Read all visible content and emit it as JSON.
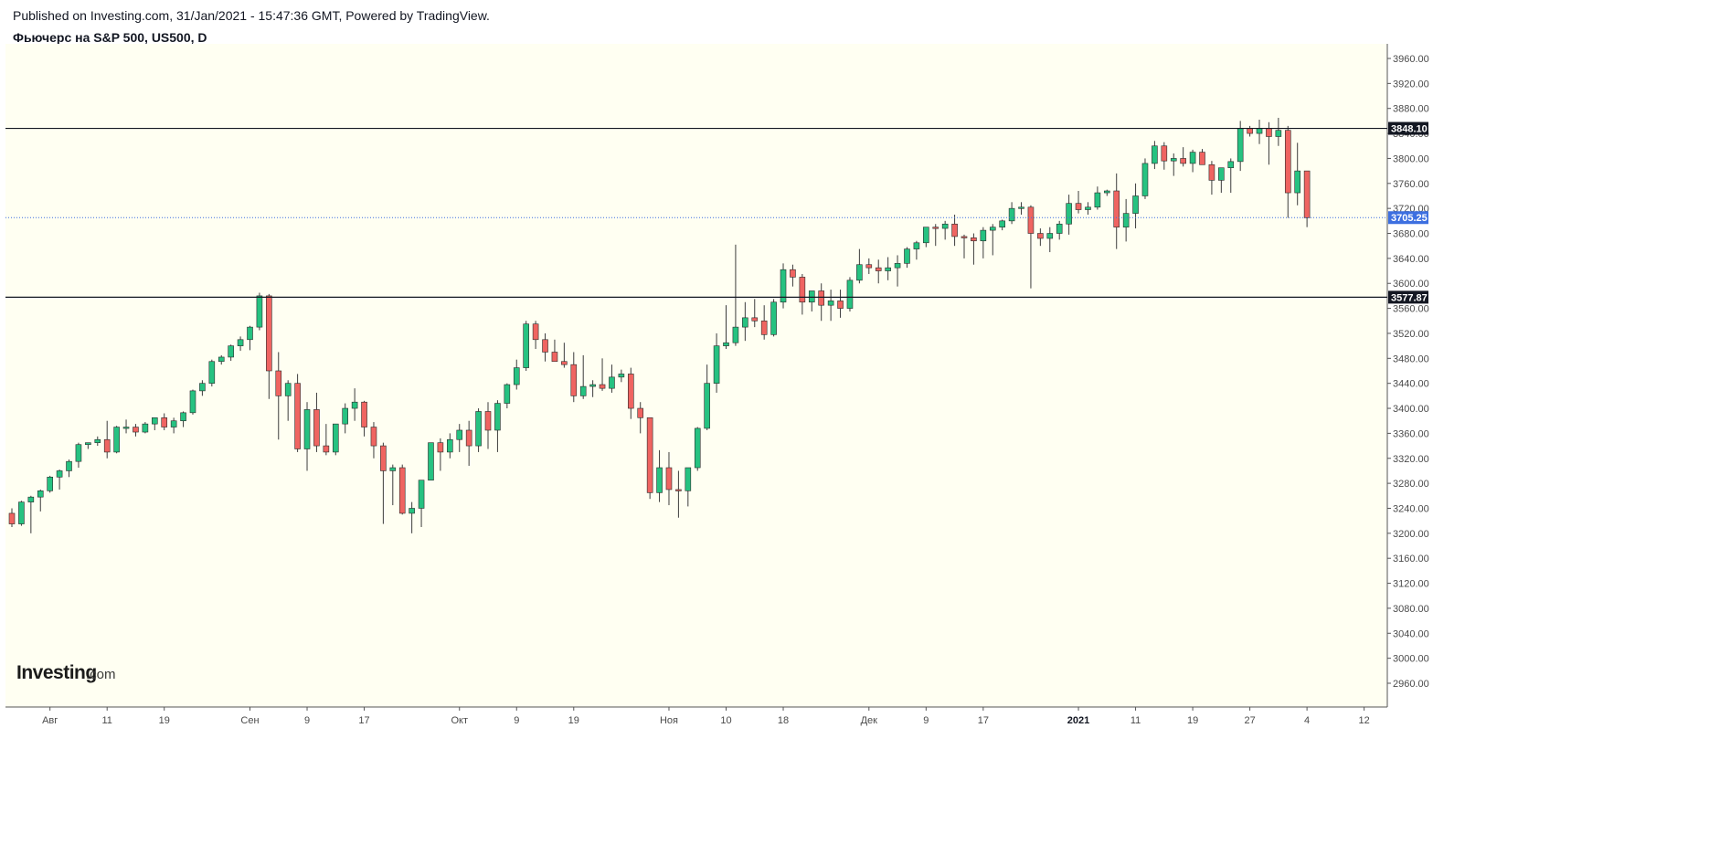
{
  "header": {
    "published": "Published on Investing.com, 31/Jan/2021 - 15:47:36 GMT, Powered by TradingView.",
    "title": "Фьючерс на S&P 500, US500, D"
  },
  "branding": {
    "logo_main": "Investing",
    "logo_sub": ".com"
  },
  "colors": {
    "background": "#fffff2",
    "up": "#26c281",
    "down": "#ef6461",
    "wick": "#3c3c3c",
    "level_line": "#131722",
    "last_price": "#3d6fe0",
    "level_label_bg": "#131722"
  },
  "chart_data": {
    "type": "candlestick",
    "instrument": "US500",
    "timeframe": "D",
    "ylim": [
      2930,
      3990
    ],
    "y_ticks": [
      2960,
      3000,
      3040,
      3080,
      3120,
      3160,
      3200,
      3240,
      3280,
      3320,
      3360,
      3400,
      3440,
      3480,
      3520,
      3560,
      3600,
      3640,
      3680,
      3720,
      3760,
      3800,
      3840,
      3880,
      3920,
      3960
    ],
    "x_ticks": [
      {
        "label": "Авг",
        "bar": 4,
        "bold": false
      },
      {
        "label": "11",
        "bar": 10,
        "bold": false
      },
      {
        "label": "19",
        "bar": 16,
        "bold": false
      },
      {
        "label": "Сен",
        "bar": 25,
        "bold": false
      },
      {
        "label": "9",
        "bar": 31,
        "bold": false
      },
      {
        "label": "17",
        "bar": 37,
        "bold": false
      },
      {
        "label": "Окт",
        "bar": 47,
        "bold": false
      },
      {
        "label": "9",
        "bar": 53,
        "bold": false
      },
      {
        "label": "19",
        "bar": 59,
        "bold": false
      },
      {
        "label": "Ноя",
        "bar": 69,
        "bold": false
      },
      {
        "label": "10",
        "bar": 75,
        "bold": false
      },
      {
        "label": "18",
        "bar": 81,
        "bold": false
      },
      {
        "label": "Дек",
        "bar": 90,
        "bold": false
      },
      {
        "label": "9",
        "bar": 96,
        "bold": false
      },
      {
        "label": "17",
        "bar": 102,
        "bold": false
      },
      {
        "label": "2021",
        "bar": 112,
        "bold": true
      },
      {
        "label": "11",
        "bar": 118,
        "bold": false
      },
      {
        "label": "19",
        "bar": 124,
        "bold": false
      },
      {
        "label": "27",
        "bar": 130,
        "bold": false
      },
      {
        "label": "4",
        "bar": 136,
        "bold": false
      },
      {
        "label": "12",
        "bar": 142,
        "bold": false
      }
    ],
    "levels": [
      {
        "value": 3848.1,
        "label": "3848.10",
        "style": "solid"
      },
      {
        "value": 3577.87,
        "label": "3577.87",
        "style": "solid"
      }
    ],
    "last_price": {
      "value": 3705.25,
      "label": "3705.25"
    },
    "candles": [
      [
        3232,
        3240,
        3210,
        3215
      ],
      [
        3215,
        3252,
        3212,
        3250
      ],
      [
        3250,
        3260,
        3200,
        3258
      ],
      [
        3258,
        3270,
        3235,
        3268
      ],
      [
        3268,
        3292,
        3265,
        3290
      ],
      [
        3290,
        3302,
        3270,
        3300
      ],
      [
        3300,
        3318,
        3290,
        3315
      ],
      [
        3315,
        3345,
        3305,
        3342
      ],
      [
        3342,
        3345,
        3335,
        3345
      ],
      [
        3345,
        3355,
        3340,
        3350
      ],
      [
        3350,
        3380,
        3320,
        3330
      ],
      [
        3330,
        3372,
        3328,
        3370
      ],
      [
        3370,
        3382,
        3360,
        3370
      ],
      [
        3370,
        3375,
        3355,
        3362
      ],
      [
        3362,
        3378,
        3360,
        3375
      ],
      [
        3375,
        3385,
        3365,
        3385
      ],
      [
        3385,
        3392,
        3365,
        3370
      ],
      [
        3370,
        3385,
        3360,
        3380
      ],
      [
        3380,
        3395,
        3370,
        3393
      ],
      [
        3393,
        3430,
        3390,
        3428
      ],
      [
        3428,
        3445,
        3420,
        3440
      ],
      [
        3440,
        3478,
        3435,
        3475
      ],
      [
        3475,
        3485,
        3470,
        3482
      ],
      [
        3482,
        3502,
        3476,
        3500
      ],
      [
        3500,
        3515,
        3492,
        3510
      ],
      [
        3510,
        3532,
        3493,
        3530
      ],
      [
        3530,
        3585,
        3525,
        3580
      ],
      [
        3580,
        3583,
        3415,
        3460
      ],
      [
        3460,
        3490,
        3350,
        3420
      ],
      [
        3420,
        3445,
        3380,
        3440
      ],
      [
        3440,
        3455,
        3330,
        3335
      ],
      [
        3335,
        3410,
        3300,
        3398
      ],
      [
        3398,
        3425,
        3330,
        3340
      ],
      [
        3340,
        3375,
        3325,
        3330
      ],
      [
        3330,
        3375,
        3325,
        3375
      ],
      [
        3375,
        3408,
        3360,
        3400
      ],
      [
        3400,
        3432,
        3380,
        3410
      ],
      [
        3410,
        3412,
        3355,
        3370
      ],
      [
        3370,
        3378,
        3320,
        3340
      ],
      [
        3340,
        3345,
        3215,
        3300
      ],
      [
        3300,
        3310,
        3245,
        3305
      ],
      [
        3305,
        3310,
        3230,
        3232
      ],
      [
        3232,
        3250,
        3200,
        3240
      ],
      [
        3240,
        3285,
        3210,
        3285
      ],
      [
        3285,
        3345,
        3285,
        3345
      ],
      [
        3345,
        3352,
        3300,
        3330
      ],
      [
        3330,
        3360,
        3320,
        3350
      ],
      [
        3350,
        3375,
        3330,
        3365
      ],
      [
        3365,
        3380,
        3308,
        3340
      ],
      [
        3340,
        3400,
        3330,
        3395
      ],
      [
        3395,
        3410,
        3335,
        3365
      ],
      [
        3365,
        3413,
        3330,
        3408
      ],
      [
        3408,
        3440,
        3400,
        3438
      ],
      [
        3438,
        3478,
        3430,
        3465
      ],
      [
        3465,
        3540,
        3460,
        3535
      ],
      [
        3535,
        3540,
        3495,
        3510
      ],
      [
        3510,
        3520,
        3475,
        3490
      ],
      [
        3490,
        3510,
        3475,
        3475
      ],
      [
        3475,
        3505,
        3465,
        3470
      ],
      [
        3470,
        3490,
        3410,
        3420
      ],
      [
        3420,
        3485,
        3415,
        3435
      ],
      [
        3435,
        3445,
        3418,
        3438
      ],
      [
        3438,
        3480,
        3428,
        3432
      ],
      [
        3432,
        3470,
        3425,
        3450
      ],
      [
        3450,
        3462,
        3442,
        3455
      ],
      [
        3455,
        3465,
        3383,
        3400
      ],
      [
        3400,
        3410,
        3360,
        3385
      ],
      [
        3385,
        3380,
        3255,
        3265
      ],
      [
        3265,
        3333,
        3250,
        3305
      ],
      [
        3305,
        3330,
        3245,
        3270
      ],
      [
        3270,
        3300,
        3225,
        3268
      ],
      [
        3268,
        3305,
        3243,
        3305
      ],
      [
        3305,
        3370,
        3300,
        3368
      ],
      [
        3368,
        3470,
        3365,
        3440
      ],
      [
        3440,
        3520,
        3425,
        3500
      ],
      [
        3500,
        3565,
        3495,
        3505
      ],
      [
        3505,
        3662,
        3500,
        3530
      ],
      [
        3530,
        3570,
        3508,
        3545
      ],
      [
        3545,
        3575,
        3530,
        3540
      ],
      [
        3540,
        3565,
        3510,
        3518
      ],
      [
        3518,
        3575,
        3515,
        3570
      ],
      [
        3570,
        3632,
        3560,
        3622
      ],
      [
        3622,
        3630,
        3595,
        3610
      ],
      [
        3610,
        3615,
        3550,
        3570
      ],
      [
        3570,
        3580,
        3555,
        3588
      ],
      [
        3588,
        3600,
        3540,
        3565
      ],
      [
        3565,
        3590,
        3540,
        3572
      ],
      [
        3572,
        3590,
        3545,
        3560
      ],
      [
        3560,
        3610,
        3555,
        3605
      ],
      [
        3605,
        3655,
        3600,
        3630
      ],
      [
        3630,
        3640,
        3615,
        3625
      ],
      [
        3625,
        3638,
        3600,
        3620
      ],
      [
        3620,
        3642,
        3605,
        3625
      ],
      [
        3625,
        3645,
        3595,
        3632
      ],
      [
        3632,
        3658,
        3625,
        3655
      ],
      [
        3655,
        3668,
        3638,
        3665
      ],
      [
        3665,
        3690,
        3658,
        3690
      ],
      [
        3690,
        3695,
        3660,
        3688
      ],
      [
        3688,
        3700,
        3670,
        3695
      ],
      [
        3695,
        3710,
        3660,
        3675
      ],
      [
        3675,
        3678,
        3640,
        3673
      ],
      [
        3673,
        3680,
        3630,
        3668
      ],
      [
        3668,
        3690,
        3640,
        3685
      ],
      [
        3685,
        3695,
        3645,
        3690
      ],
      [
        3690,
        3702,
        3685,
        3700
      ],
      [
        3700,
        3730,
        3695,
        3720
      ],
      [
        3720,
        3730,
        3710,
        3722
      ],
      [
        3722,
        3725,
        3592,
        3680
      ],
      [
        3680,
        3688,
        3660,
        3672
      ],
      [
        3672,
        3690,
        3650,
        3680
      ],
      [
        3680,
        3700,
        3670,
        3695
      ],
      [
        3695,
        3742,
        3678,
        3728
      ],
      [
        3728,
        3748,
        3712,
        3718
      ],
      [
        3718,
        3730,
        3710,
        3722
      ],
      [
        3722,
        3755,
        3718,
        3745
      ],
      [
        3745,
        3750,
        3740,
        3748
      ],
      [
        3748,
        3776,
        3655,
        3690
      ],
      [
        3690,
        3735,
        3667,
        3712
      ],
      [
        3712,
        3760,
        3688,
        3740
      ],
      [
        3740,
        3800,
        3735,
        3792
      ],
      [
        3792,
        3828,
        3783,
        3820
      ],
      [
        3820,
        3826,
        3782,
        3796
      ],
      [
        3796,
        3808,
        3772,
        3800
      ],
      [
        3800,
        3818,
        3787,
        3792
      ],
      [
        3792,
        3814,
        3778,
        3810
      ],
      [
        3810,
        3815,
        3790,
        3790
      ],
      [
        3790,
        3796,
        3742,
        3765
      ],
      [
        3765,
        3785,
        3745,
        3785
      ],
      [
        3785,
        3800,
        3745,
        3795
      ],
      [
        3795,
        3860,
        3780,
        3848
      ],
      [
        3848,
        3852,
        3835,
        3840
      ],
      [
        3840,
        3862,
        3823,
        3848
      ],
      [
        3848,
        3858,
        3790,
        3835
      ],
      [
        3835,
        3865,
        3820,
        3845
      ],
      [
        3845,
        3852,
        3705,
        3745
      ],
      [
        3745,
        3825,
        3725,
        3780
      ],
      [
        3780,
        3770,
        3690,
        3705
      ]
    ]
  }
}
